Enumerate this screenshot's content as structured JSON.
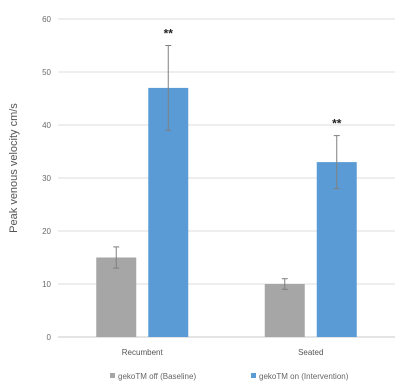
{
  "chart_data": {
    "type": "bar",
    "ylabel": "Peak venous velocity cm/s",
    "ylim": [
      0,
      60
    ],
    "yticks": [
      0,
      10,
      20,
      30,
      40,
      50,
      60
    ],
    "grid": true,
    "legend_position": "bottom",
    "categories": [
      "Recumbent",
      "Seated"
    ],
    "series": [
      {
        "name": "gekoTM off (Baseline)",
        "color": "#a6a6a6",
        "values": [
          15,
          10
        ],
        "error": [
          2,
          1
        ]
      },
      {
        "name": "gekoTM on (Intervention)",
        "color": "#5b9bd5",
        "values": [
          47,
          33
        ],
        "error": [
          8,
          5
        ]
      }
    ],
    "annotations": [
      {
        "category": "Recumbent",
        "series": 1,
        "text": "**"
      },
      {
        "category": "Seated",
        "series": 1,
        "text": "**"
      }
    ]
  }
}
